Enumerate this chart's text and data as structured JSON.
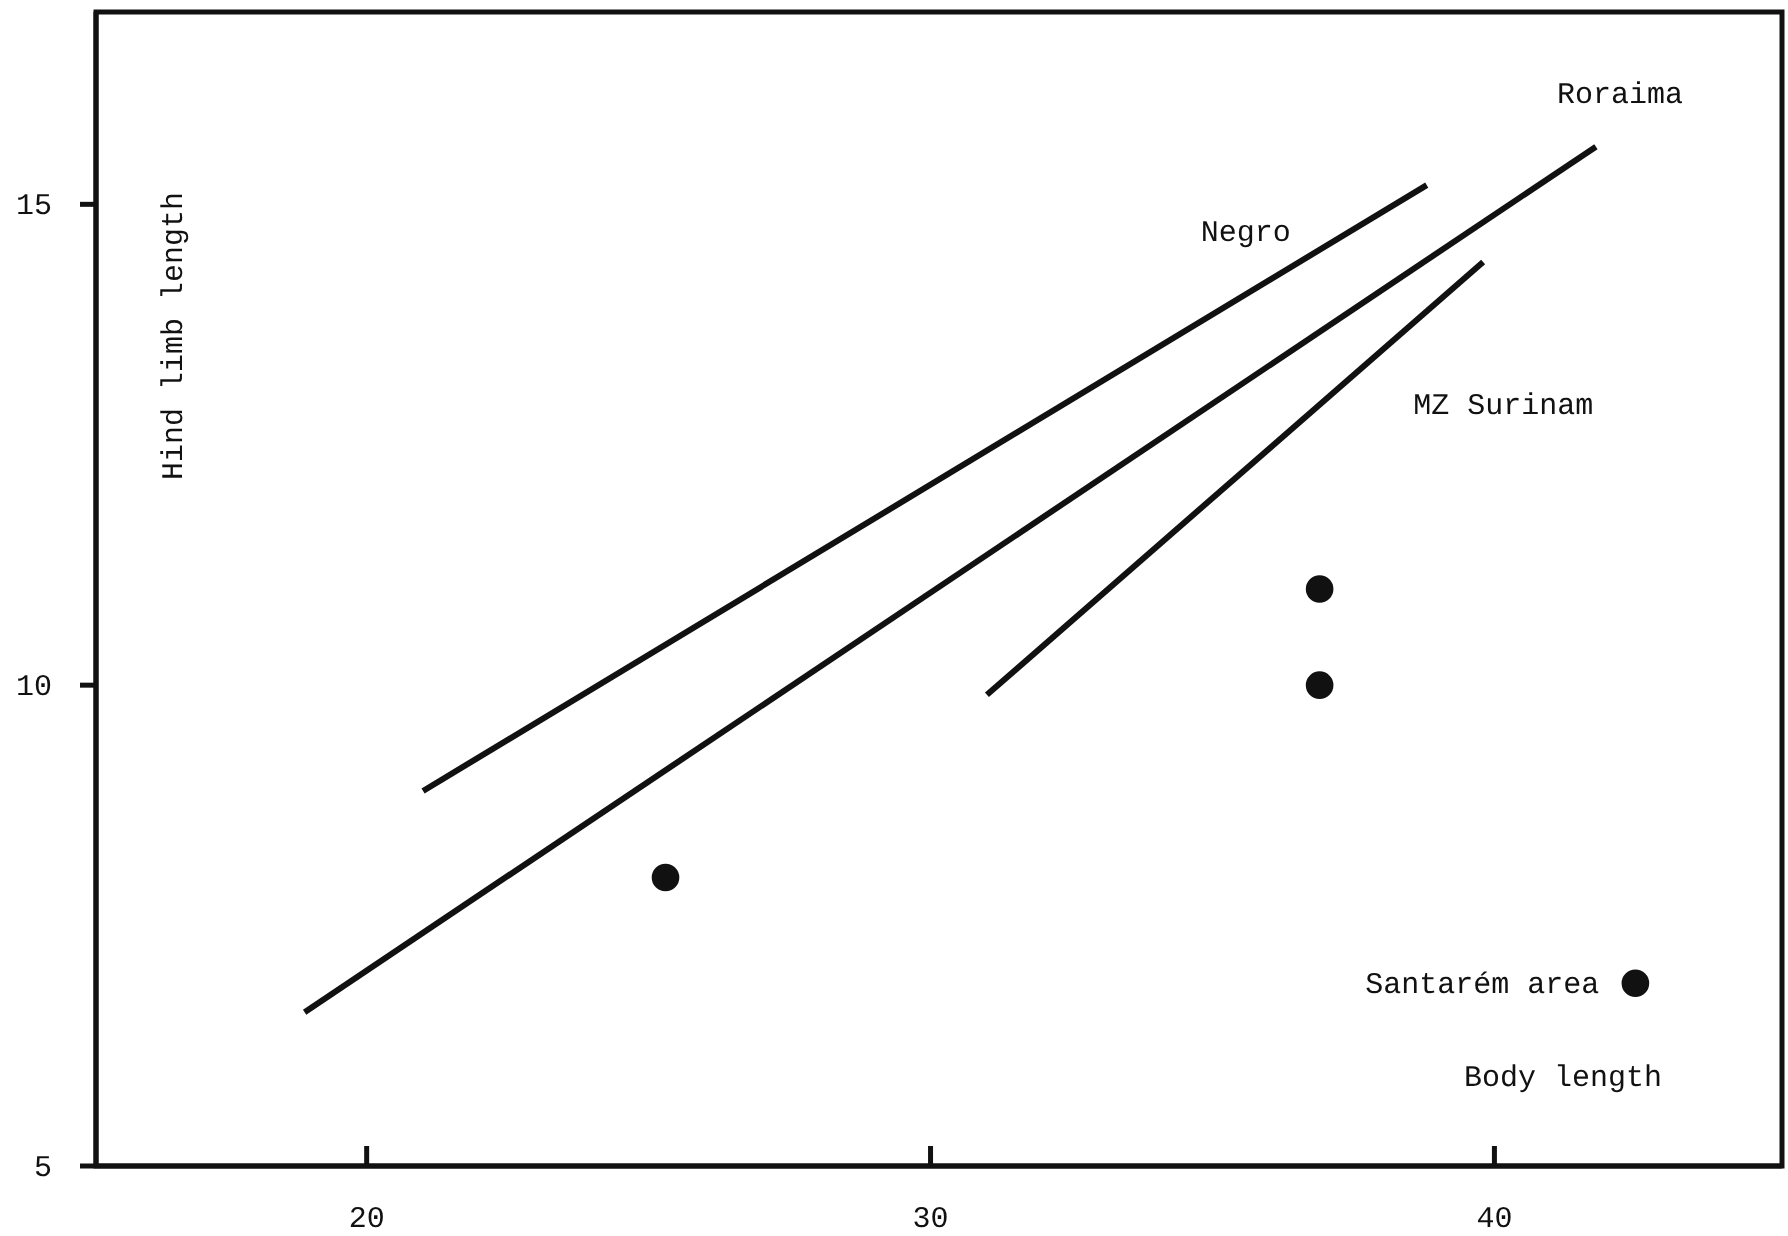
{
  "chart_data": {
    "type": "line",
    "xlabel": "Body length",
    "ylabel": "Hind limb length",
    "xlim": [
      15.2,
      45.1
    ],
    "ylim": [
      5,
      17
    ],
    "xticks": [
      20,
      30,
      40
    ],
    "yticks": [
      5,
      10,
      15
    ],
    "grid": false,
    "series": [
      {
        "name": "Negro",
        "color": "#111111",
        "x": [
          21.0,
          38.8
        ],
        "values": [
          8.9,
          15.2
        ],
        "marker": "none"
      },
      {
        "name": "Roraima",
        "color": "#111111",
        "x": [
          18.9,
          41.8
        ],
        "values": [
          6.6,
          15.6
        ],
        "marker": "none"
      },
      {
        "name": "MZ Surinam",
        "color": "#111111",
        "x": [
          31.0,
          39.8
        ],
        "values": [
          9.9,
          14.4
        ],
        "marker": "none"
      },
      {
        "type": "scatter",
        "color": "#111111",
        "x": [
          25.3,
          36.9,
          36.9,
          42.5
        ],
        "values": [
          8.0,
          11.0,
          10.0,
          6.9
        ],
        "marker": "circle"
      }
    ],
    "annotations": [
      {
        "text": "Santarém area",
        "x": 42.5,
        "y": 6.9
      }
    ]
  }
}
